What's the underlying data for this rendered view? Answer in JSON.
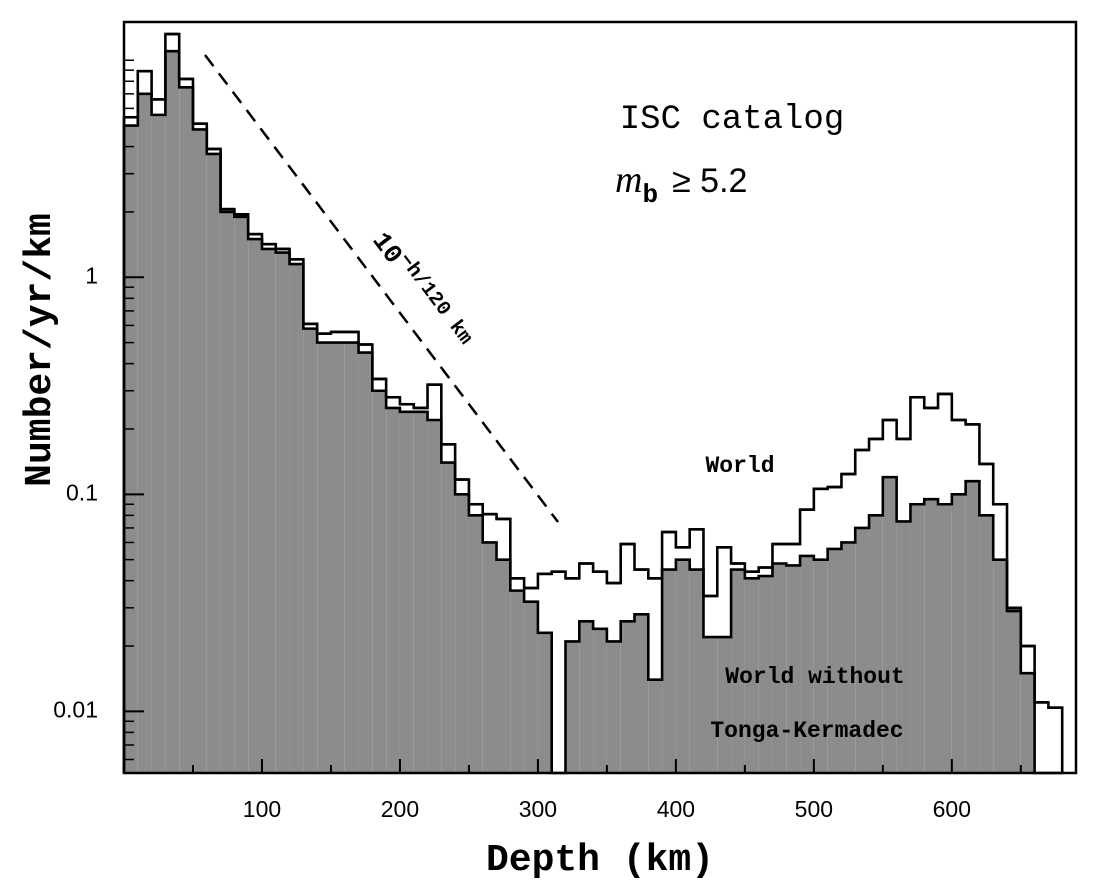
{
  "chart_data": {
    "type": "histogram",
    "x_label": "Depth (km)",
    "y_label": "Number/yr/km",
    "log_y": true,
    "xlim": [
      0,
      690
    ],
    "ylim": [
      0.0052,
      15
    ],
    "xticks": [
      100,
      200,
      300,
      400,
      500,
      600
    ],
    "xminorticks": [
      50,
      150,
      250,
      350,
      450,
      550,
      650
    ],
    "yticks": [
      0.01,
      0.1,
      1
    ],
    "yminorticks": [
      0.006,
      0.007,
      0.008,
      0.009,
      0.02,
      0.03,
      0.04,
      0.05,
      0.06,
      0.07,
      0.08,
      0.09,
      0.2,
      0.3,
      0.4,
      0.5,
      0.6,
      0.7,
      0.8,
      0.9,
      2,
      3,
      4,
      5,
      6,
      7,
      8,
      9,
      10
    ],
    "bins": [
      0,
      10,
      20,
      30,
      40,
      50,
      60,
      70,
      80,
      90,
      100,
      110,
      120,
      130,
      140,
      150,
      160,
      170,
      180,
      190,
      200,
      210,
      220,
      230,
      240,
      250,
      260,
      270,
      280,
      290,
      300,
      310,
      320,
      330,
      340,
      350,
      360,
      370,
      380,
      390,
      400,
      410,
      420,
      430,
      440,
      450,
      460,
      470,
      480,
      490,
      500,
      510,
      520,
      530,
      540,
      550,
      560,
      570,
      580,
      590,
      600,
      610,
      620,
      630,
      640,
      650,
      660,
      670,
      680
    ],
    "series": [
      {
        "name": "World",
        "color": "#000000",
        "filled": false,
        "values": [
          5.46,
          8.9,
          6.6,
          13.2,
          8.2,
          5.1,
          3.9,
          2.06,
          1.95,
          1.58,
          1.42,
          1.35,
          1.21,
          0.61,
          0.55,
          0.56,
          0.56,
          0.49,
          0.34,
          0.28,
          0.26,
          0.25,
          0.32,
          0.17,
          0.117,
          0.09,
          0.081,
          0.077,
          0.041,
          0.037,
          0.043,
          0.044,
          0.041,
          0.048,
          0.044,
          0.039,
          0.059,
          0.045,
          0.041,
          0.067,
          0.057,
          0.069,
          0.034,
          0.057,
          0.048,
          0.044,
          0.046,
          0.059,
          0.059,
          0.085,
          0.106,
          0.108,
          0.124,
          0.16,
          0.18,
          0.22,
          0.18,
          0.28,
          0.25,
          0.29,
          0.22,
          0.21,
          0.138,
          0.09,
          0.029,
          0.02,
          0.011,
          0.0104
        ]
      },
      {
        "name": "World without Tonga-Kermadec",
        "color": "#8c8c8c",
        "filled": true,
        "values": [
          5.0,
          7.0,
          5.6,
          11,
          7.5,
          4.8,
          3.7,
          2.0,
          1.9,
          1.5,
          1.35,
          1.3,
          1.15,
          0.58,
          0.5,
          0.5,
          0.5,
          0.45,
          0.3,
          0.25,
          0.24,
          0.24,
          0.22,
          0.14,
          0.1,
          0.08,
          0.06,
          0.05,
          0.036,
          0.032,
          0.023,
          0,
          0.021,
          0.026,
          0.024,
          0.021,
          0.026,
          0.028,
          0.014,
          0.045,
          0.05,
          0.045,
          0.022,
          0.022,
          0.045,
          0.041,
          0.042,
          0.048,
          0.047,
          0.052,
          0.05,
          0.056,
          0.06,
          0.07,
          0.08,
          0.12,
          0.075,
          0.09,
          0.095,
          0.09,
          0.1,
          0.115,
          0.08,
          0.05,
          0.03,
          0.015,
          0,
          0
        ]
      }
    ],
    "annotations": {
      "catalog": "ISC catalog",
      "magnitude_symbol": "m",
      "magnitude_subscript": "b",
      "magnitude_relation": "≥ 5.2",
      "slope_base": "10",
      "slope_exponent": "−h/120 km",
      "world_label": "World",
      "filtered_label_line1": "World without",
      "filtered_label_line2": "Tonga-Kermadec"
    }
  }
}
